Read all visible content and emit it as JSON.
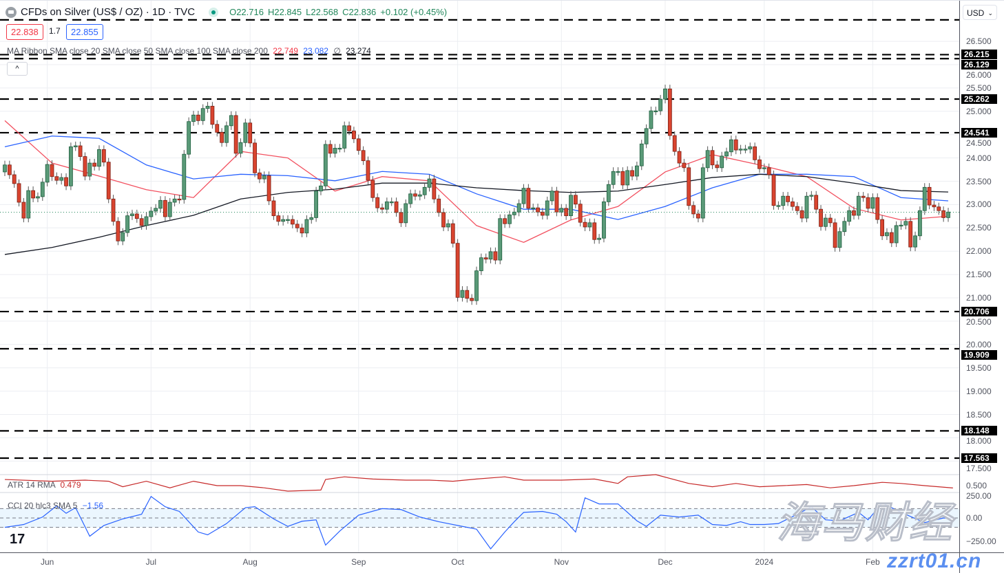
{
  "header": {
    "title": "CFDs on Silver (US$ / OZ) · 1D · TVC",
    "ohlc": {
      "open": "O22.716",
      "high": "H22.845",
      "low": "L22.568",
      "close": "C22.836",
      "change": "+0.102 (+0.45%)"
    },
    "sell_price": "22.838",
    "spread": "1.7",
    "buy_price": "22.855",
    "currency": "USD",
    "collapse_icon": "chevron-up-icon"
  },
  "ma_legend": {
    "label": "MA Ribbon SMA close 20 SMA close 50 SMA close 100 SMA close 200",
    "sma20": "22.749",
    "sma50": "23.082",
    "sma100": "∅",
    "sma200": "23.274"
  },
  "atr_legend": {
    "label": "ATR 14 RMA",
    "value": "0.479"
  },
  "cci_legend": {
    "label": "CCI 20 hlc3 SMA 5",
    "value": "−1.56"
  },
  "colors": {
    "up": "#5a9a78",
    "down": "#d9442f",
    "sma20": "#f2505f",
    "sma50": "#2962ff",
    "sma200": "#131722",
    "atr": "#c62828",
    "cci": "#2962ff",
    "last_price": "#22875b"
  },
  "watermark": {
    "cn": "海马财经",
    "site": "zzrt01.cn"
  },
  "chart_data": {
    "type": "candlestick",
    "x_labels": [
      {
        "label": "Jun",
        "index": 9
      },
      {
        "label": "Jul",
        "index": 31
      },
      {
        "label": "Aug",
        "index": 52
      },
      {
        "label": "Sep",
        "index": 75
      },
      {
        "label": "Oct",
        "index": 96
      },
      {
        "label": "Nov",
        "index": 118
      },
      {
        "label": "Dec",
        "index": 140
      },
      {
        "label": "2024",
        "index": 161
      },
      {
        "label": "Feb",
        "index": 184
      }
    ],
    "y_ticks": [
      "17.500",
      "18.000",
      "18.500",
      "19.000",
      "19.500",
      "20.000",
      "20.500",
      "21.000",
      "21.500",
      "22.000",
      "22.500",
      "23.000",
      "23.500",
      "24.000",
      "24.500",
      "25.000",
      "25.500",
      "26.000",
      "26.500"
    ],
    "ylim": [
      17.3,
      27.0
    ],
    "closes": [
      23.85,
      23.64,
      23.45,
      23.05,
      22.71,
      23.3,
      23.14,
      23.17,
      23.48,
      23.86,
      23.6,
      23.52,
      23.58,
      23.4,
      24.24,
      24.26,
      24.03,
      23.61,
      23.89,
      23.82,
      24.18,
      23.91,
      23.12,
      22.64,
      22.22,
      22.4,
      22.76,
      22.8,
      22.7,
      22.55,
      22.74,
      22.86,
      22.92,
      23.09,
      22.74,
      23.05,
      23.12,
      23.11,
      24.08,
      24.78,
      24.92,
      24.8,
      25.06,
      25.11,
      24.72,
      24.55,
      24.33,
      24.69,
      24.91,
      24.1,
      24.33,
      24.75,
      24.32,
      23.68,
      23.55,
      23.62,
      23.08,
      22.76,
      22.64,
      22.68,
      22.68,
      22.58,
      22.5,
      22.39,
      22.68,
      22.72,
      23.29,
      23.4,
      24.29,
      24.1,
      24.21,
      24.21,
      24.69,
      24.58,
      24.41,
      24.16,
      23.94,
      23.52,
      23.15,
      22.93,
      22.9,
      23.06,
      23.06,
      22.83,
      22.61,
      23.02,
      23.23,
      23.18,
      23.21,
      23.37,
      23.55,
      23.12,
      22.83,
      22.52,
      22.59,
      22.17,
      21.01,
      21.16,
      20.99,
      20.94,
      21.58,
      21.86,
      21.83,
      21.99,
      21.81,
      22.7,
      22.59,
      22.78,
      22.84,
      23.02,
      23.35,
      22.92,
      22.93,
      22.84,
      22.77,
      23.08,
      23.29,
      22.84,
      22.92,
      22.76,
      23.2,
      23.01,
      22.62,
      22.52,
      22.61,
      22.25,
      22.28,
      23.06,
      23.43,
      23.71,
      23.71,
      23.42,
      23.73,
      23.61,
      23.83,
      24.3,
      24.63,
      25.01,
      25.01,
      25.26,
      25.48,
      24.48,
      24.14,
      23.89,
      23.79,
      22.98,
      22.8,
      22.71,
      23.79,
      24.16,
      23.85,
      23.79,
      24.04,
      24.13,
      24.39,
      24.17,
      24.19,
      24.19,
      24.24,
      23.96,
      23.77,
      23.79,
      23.64,
      22.98,
      22.98,
      23.18,
      23.06,
      22.96,
      22.87,
      22.71,
      23.18,
      23.2,
      22.9,
      22.53,
      22.71,
      22.61,
      22.08,
      22.42,
      22.64,
      22.87,
      22.77,
      23.18,
      23.15,
      22.92,
      23.15,
      22.68,
      22.33,
      22.4,
      22.18,
      22.55,
      22.56,
      22.64,
      22.09,
      22.33,
      22.87,
      23.37,
      22.99,
      22.95,
      22.87,
      22.72,
      22.84
    ],
    "last_price": 22.836,
    "levels": [
      26.96,
      26.215,
      26.129,
      25.262,
      24.541,
      20.706,
      19.909,
      18.148,
      17.563
    ],
    "level_labels": [
      "",
      "26.215",
      "26.129",
      "25.262",
      "24.541",
      "20.706",
      "19.909",
      "18.148",
      "17.563"
    ],
    "moving_averages": [
      {
        "name": "SMA 20",
        "index": [
          0,
          10,
          20,
          30,
          40,
          50,
          60,
          70,
          80,
          90,
          100,
          110,
          120,
          130,
          140,
          150,
          160,
          170,
          180,
          190,
          200
        ],
        "values": [
          24.8,
          23.89,
          23.61,
          23.32,
          23.15,
          24.14,
          24.0,
          23.29,
          23.6,
          23.51,
          22.55,
          22.19,
          22.67,
          22.96,
          23.7,
          24.07,
          23.85,
          23.6,
          22.92,
          22.67,
          22.75
        ]
      },
      {
        "name": "SMA 50",
        "index": [
          0,
          10,
          20,
          30,
          40,
          50,
          60,
          70,
          80,
          90,
          100,
          110,
          120,
          130,
          140,
          150,
          160,
          170,
          180,
          190,
          200
        ],
        "values": [
          24.24,
          24.47,
          24.42,
          23.85,
          23.55,
          23.65,
          23.62,
          23.51,
          23.71,
          23.65,
          23.23,
          22.9,
          22.9,
          22.68,
          22.96,
          23.36,
          23.65,
          23.65,
          23.6,
          23.15,
          23.08
        ]
      },
      {
        "name": "SMA 200",
        "index": [
          0,
          10,
          20,
          30,
          40,
          50,
          60,
          70,
          80,
          90,
          100,
          110,
          120,
          130,
          140,
          150,
          160,
          170,
          180,
          190,
          200
        ],
        "values": [
          21.93,
          22.08,
          22.3,
          22.55,
          22.77,
          23.12,
          23.26,
          23.33,
          23.46,
          23.46,
          23.36,
          23.3,
          23.26,
          23.29,
          23.43,
          23.58,
          23.65,
          23.6,
          23.46,
          23.3,
          23.27
        ]
      }
    ],
    "atr": {
      "ytick": "0.500",
      "index": [
        0,
        10,
        17,
        22,
        25,
        30,
        35,
        40,
        45,
        50,
        55,
        60,
        67,
        68,
        72,
        78,
        85,
        90,
        95,
        100,
        106,
        110,
        118,
        125,
        130,
        132,
        138,
        145,
        150,
        155,
        160,
        165,
        170,
        175,
        180,
        186,
        190,
        195,
        201
      ],
      "values": [
        0.556,
        0.54,
        0.55,
        0.54,
        0.49,
        0.54,
        0.48,
        0.54,
        0.5,
        0.5,
        0.48,
        0.45,
        0.46,
        0.556,
        0.58,
        0.56,
        0.55,
        0.55,
        0.54,
        0.56,
        0.58,
        0.55,
        0.55,
        0.56,
        0.52,
        0.58,
        0.6,
        0.52,
        0.49,
        0.52,
        0.49,
        0.5,
        0.51,
        0.48,
        0.5,
        0.53,
        0.52,
        0.5,
        0.479
      ]
    },
    "cci": {
      "yticks": [
        "250.00",
        "0.00",
        "−250.00"
      ],
      "band": [
        -100,
        100
      ],
      "index": [
        0,
        4,
        8,
        11,
        13,
        15,
        18,
        21,
        25,
        29,
        31,
        34,
        37,
        41,
        43,
        47,
        51,
        53,
        57,
        60,
        63,
        66,
        68,
        71,
        75,
        80,
        84,
        88,
        92,
        96,
        100,
        103,
        106,
        108,
        110,
        114,
        117,
        119,
        121,
        123,
        126,
        130,
        134,
        136,
        139,
        143,
        147,
        150,
        153,
        156,
        158,
        161,
        164,
        168,
        171,
        174,
        177,
        181,
        183,
        186,
        190,
        195,
        199,
        201
      ],
      "values": [
        -100,
        -70,
        10,
        130,
        50,
        110,
        -195,
        -80,
        -10,
        40,
        230,
        120,
        70,
        -150,
        -180,
        -60,
        110,
        120,
        -10,
        -90,
        -35,
        -20,
        -290,
        -140,
        30,
        100,
        90,
        10,
        -40,
        -80,
        -120,
        -330,
        -150,
        -40,
        60,
        70,
        40,
        -40,
        -150,
        215,
        150,
        150,
        -30,
        -90,
        30,
        10,
        30,
        -70,
        -80,
        -40,
        -70,
        -70,
        -60,
        40,
        120,
        -20,
        -30,
        60,
        -20,
        160,
        60,
        -50,
        0,
        -1.56
      ]
    }
  }
}
